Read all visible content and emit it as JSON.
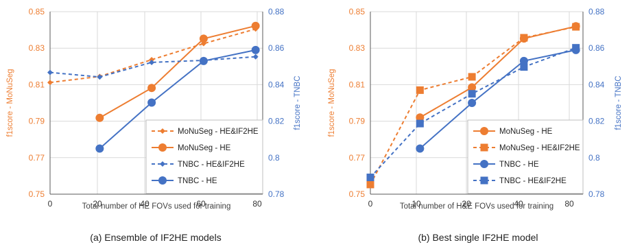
{
  "colors": {
    "orange": "#ED7D31",
    "blue": "#4472C4",
    "grid": "#D9D9D9",
    "axis": "#595959"
  },
  "chart_data": [
    {
      "type": "line",
      "caption": "(a) Ensemble of IF2HE models",
      "xlabel": "Total number of HE FOVs used for training",
      "ylabel_left": "f1score - MoNuSeg",
      "ylabel_right": "f1score - TNBC",
      "xlim": [
        0,
        90
      ],
      "x_ticks": [
        "0",
        "20",
        "40",
        "60",
        "80"
      ],
      "ylim_left": [
        0.75,
        0.85
      ],
      "y_ticks_left": [
        "0.75",
        "0.77",
        "0.79",
        "0.81",
        "0.83",
        "0.85"
      ],
      "ylim_right": [
        0.78,
        0.88
      ],
      "y_ticks_right": [
        "0.78",
        "0.8",
        "0.82",
        "0.84",
        "0.86",
        "0.88"
      ],
      "grid": true,
      "legend_position": "bottom-right",
      "series": [
        {
          "name": "MoNuSeg - HE&IF2HE",
          "axis": "left",
          "color": "#ED7D31",
          "dash": true,
          "marker": "diamond",
          "x": [
            0,
            21,
            43,
            65,
            87
          ],
          "y": [
            0.8112,
            0.8145,
            0.8237,
            0.8325,
            0.8405
          ]
        },
        {
          "name": "MoNuSeg - HE",
          "axis": "left",
          "color": "#ED7D31",
          "dash": false,
          "marker": "circle",
          "x": [
            21,
            43,
            65,
            87
          ],
          "y": [
            0.7918,
            0.8082,
            0.8352,
            0.8422
          ]
        },
        {
          "name": "TNBC - HE&IF2HE",
          "axis": "right",
          "color": "#4472C4",
          "dash": true,
          "marker": "diamond",
          "x": [
            0,
            21,
            43,
            65,
            87
          ],
          "y": [
            0.8467,
            0.8442,
            0.8522,
            0.8533,
            0.8553
          ]
        },
        {
          "name": "TNBC - HE",
          "axis": "right",
          "color": "#4472C4",
          "dash": false,
          "marker": "circle",
          "x": [
            21,
            43,
            65,
            87
          ],
          "y": [
            0.805,
            0.8302,
            0.853,
            0.859
          ]
        }
      ]
    },
    {
      "type": "line",
      "caption": "(b) Best single IF2HE model",
      "xlabel": "Total number of H&E FOVs used for training",
      "ylabel_left": "f1score - MoNuSeg",
      "ylabel_right": "f1score - TNBC",
      "xlim": [
        0,
        90
      ],
      "x_ticks": [
        "0",
        "10",
        "20",
        "40",
        "80"
      ],
      "ylim_left": [
        0.75,
        0.85
      ],
      "y_ticks_left": [
        "0.75",
        "0.77",
        "0.79",
        "0.81",
        "0.83",
        "0.85"
      ],
      "ylim_right": [
        0.78,
        0.88
      ],
      "y_ticks_right": [
        "0.78",
        "0.8",
        "0.82",
        "0.84",
        "0.86",
        "0.88"
      ],
      "grid": true,
      "legend_position": "bottom-right",
      "series": [
        {
          "name": "MoNuSeg - HE",
          "axis": "left",
          "color": "#ED7D31",
          "dash": false,
          "marker": "circle",
          "x": [
            21,
            43,
            65,
            87
          ],
          "y": [
            0.792,
            0.8085,
            0.8353,
            0.842
          ]
        },
        {
          "name": "MoNuSeg - HE&IF2HE",
          "axis": "left",
          "color": "#ED7D31",
          "dash": true,
          "marker": "square",
          "x": [
            0,
            21,
            43,
            65,
            87
          ],
          "y": [
            0.7553,
            0.807,
            0.8143,
            0.8357,
            0.8417
          ]
        },
        {
          "name": "TNBC - HE",
          "axis": "right",
          "color": "#4472C4",
          "dash": false,
          "marker": "circle",
          "x": [
            21,
            43,
            65,
            87
          ],
          "y": [
            0.805,
            0.83,
            0.853,
            0.859
          ]
        },
        {
          "name": "TNBC - HE&IF2HE",
          "axis": "right",
          "color": "#4472C4",
          "dash": true,
          "marker": "square",
          "x": [
            0,
            21,
            43,
            65,
            87
          ],
          "y": [
            0.7892,
            0.8187,
            0.835,
            0.8497,
            0.8602
          ]
        }
      ]
    }
  ]
}
